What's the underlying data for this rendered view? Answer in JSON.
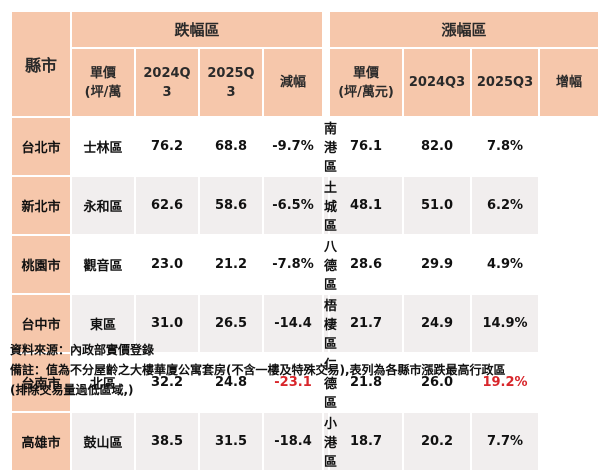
{
  "table": {
    "city_header": "縣市",
    "drop_group": "跌幅區",
    "rise_group": "漲幅區",
    "drop_cols": [
      "單價\n(坪/萬",
      "2024Q\n3",
      "2025Q\n3",
      "減幅"
    ],
    "rise_cols": [
      "單價\n(坪/萬元)",
      "2024Q3",
      "2025Q3",
      "增幅"
    ],
    "highlight_color": "#d8262b",
    "rows": [
      {
        "city": "台北市",
        "drop": {
          "district": "士林區",
          "q2024": "76.2",
          "q2025": "68.8",
          "change": "-9.7%",
          "highlight": false
        },
        "rise": {
          "district": "南港區",
          "q2024": "76.1",
          "q2025": "82.0",
          "change": "7.8%",
          "highlight": false
        }
      },
      {
        "city": "新北市",
        "drop": {
          "district": "永和區",
          "q2024": "62.6",
          "q2025": "58.6",
          "change": "-6.5%",
          "highlight": false
        },
        "rise": {
          "district": "土城區",
          "q2024": "48.1",
          "q2025": "51.0",
          "change": "6.2%",
          "highlight": false
        }
      },
      {
        "city": "桃園市",
        "drop": {
          "district": "觀音區",
          "q2024": "23.0",
          "q2025": "21.2",
          "change": "-7.8%",
          "highlight": false
        },
        "rise": {
          "district": "八德區",
          "q2024": "28.6",
          "q2025": "29.9",
          "change": "4.9%",
          "highlight": false
        }
      },
      {
        "city": "台中市",
        "drop": {
          "district": "東區",
          "q2024": "31.0",
          "q2025": "26.5",
          "change": "-14.4",
          "highlight": false
        },
        "rise": {
          "district": "梧棲區",
          "q2024": "21.7",
          "q2025": "24.9",
          "change": "14.9%",
          "highlight": false
        }
      },
      {
        "city": "台南市",
        "drop": {
          "district": "北區",
          "q2024": "32.2",
          "q2025": "24.8",
          "change": "-23.1",
          "highlight": true
        },
        "rise": {
          "district": "仁德區",
          "q2024": "21.8",
          "q2025": "26.0",
          "change": "19.2%",
          "highlight": true
        }
      },
      {
        "city": "高雄市",
        "drop": {
          "district": "鼓山區",
          "q2024": "38.5",
          "q2025": "31.5",
          "change": "-18.4",
          "highlight": false
        },
        "rise": {
          "district": "小港區",
          "q2024": "18.7",
          "q2025": "20.2",
          "change": "7.7%",
          "highlight": false
        }
      }
    ]
  },
  "notes": {
    "source": "資料來源：內政部實價登錄",
    "remark1": "備註：值為不分屋齡之大樓華廈公寓套房(不含一樓及特殊交易),表列為各縣市漲跌最高行政區",
    "remark2": "(排除交易量過低區域,)"
  }
}
